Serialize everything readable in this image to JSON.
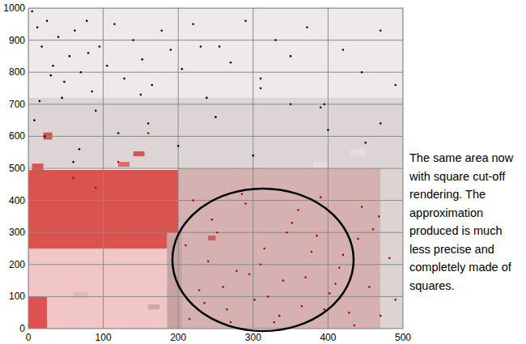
{
  "chart_data": {
    "type": "scatter",
    "xlim": [
      0,
      500
    ],
    "ylim": [
      0,
      1000
    ],
    "xticks": [
      0,
      100,
      200,
      300,
      400,
      500
    ],
    "yticks": [
      0,
      100,
      200,
      300,
      400,
      500,
      600,
      700,
      800,
      900,
      1000
    ],
    "grid": true,
    "annotation": [
      "The same area now",
      "with square cut-off",
      "rendering. The",
      "approximation",
      "produced is much",
      "less precise and",
      "completely made of",
      "squares."
    ],
    "cells": [
      {
        "x": [
          0,
          500
        ],
        "y": [
          0,
          1000
        ],
        "color": "#eeeaea"
      },
      {
        "x": [
          0,
          500
        ],
        "y": [
          500,
          720
        ],
        "color": "#ddd5d5"
      },
      {
        "x": [
          200,
          470
        ],
        "y": [
          0,
          500
        ],
        "color": "#d5b1b1"
      },
      {
        "x": [
          470,
          500
        ],
        "y": [
          0,
          500
        ],
        "color": "#ddd3d3"
      },
      {
        "x": [
          0,
          200
        ],
        "y": [
          250,
          495
        ],
        "color": "#d9534f"
      },
      {
        "x": [
          0,
          185
        ],
        "y": [
          0,
          250
        ],
        "color": "#f0c6c6"
      },
      {
        "x": [
          185,
          205
        ],
        "y": [
          0,
          300
        ],
        "color": "#c9a3a3"
      },
      {
        "x": [
          0,
          25
        ],
        "y": [
          0,
          100
        ],
        "color": "#e05252"
      },
      {
        "x": [
          20,
          32
        ],
        "y": [
          590,
          612
        ],
        "color": "#d9534f"
      },
      {
        "x": [
          5,
          20
        ],
        "y": [
          495,
          515
        ],
        "color": "#d9534f"
      },
      {
        "x": [
          140,
          155
        ],
        "y": [
          538,
          553
        ],
        "color": "#d9534f"
      },
      {
        "x": [
          120,
          135
        ],
        "y": [
          505,
          520
        ],
        "color": "#dd6a66"
      },
      {
        "x": [
          180,
          195
        ],
        "y": [
          470,
          485
        ],
        "color": "#d9534f"
      },
      {
        "x": [
          240,
          250
        ],
        "y": [
          275,
          290
        ],
        "color": "#d35a5a"
      },
      {
        "x": [
          380,
          400
        ],
        "y": [
          500,
          520
        ],
        "color": "#e6dede"
      },
      {
        "x": [
          430,
          450
        ],
        "y": [
          540,
          560
        ],
        "color": "#e6dede"
      },
      {
        "x": [
          60,
          80
        ],
        "y": [
          95,
          115
        ],
        "color": "#e8b8b8"
      },
      {
        "x": [
          160,
          175
        ],
        "y": [
          60,
          75
        ],
        "color": "#c8a4a4"
      }
    ],
    "series": [
      {
        "color": "#000000",
        "marker": "dot",
        "x": [
          5,
          12,
          18,
          25,
          33,
          40,
          48,
          55,
          62,
          70,
          78,
          85,
          95,
          105,
          115,
          128,
          140,
          152,
          165,
          178,
          190,
          205,
          220,
          238,
          255,
          270,
          290,
          310,
          330,
          350,
          372,
          395,
          420,
          445,
          470,
          490,
          8,
          22,
          45,
          68,
          90,
          120,
          160,
          200,
          250,
          300,
          350,
          400,
          450,
          30,
          80,
          150,
          230,
          310,
          390,
          470,
          15,
          60
        ],
        "values": [
          990,
          940,
          880,
          960,
          820,
          910,
          770,
          850,
          930,
          800,
          960,
          740,
          880,
          820,
          950,
          780,
          900,
          840,
          760,
          930,
          870,
          810,
          950,
          720,
          880,
          830,
          960,
          780,
          900,
          850,
          940,
          700,
          870,
          800,
          930,
          760,
          650,
          600,
          720,
          560,
          680,
          610,
          640,
          570,
          660,
          540,
          700,
          620,
          580,
          790,
          860,
          730,
          880,
          750,
          690,
          640,
          710,
          520
        ]
      },
      {
        "color": "#c00000",
        "marker": "dot",
        "x": [
          215,
          228,
          240,
          252,
          265,
          278,
          290,
          302,
          315,
          328,
          340,
          352,
          365,
          378,
          390,
          402,
          415,
          428,
          440,
          455,
          468,
          482,
          220,
          245,
          270,
          295,
          320,
          345,
          370,
          395,
          420,
          445,
          470,
          210,
          235,
          260,
          285,
          310,
          335,
          360,
          385,
          410,
          435,
          460,
          490,
          120,
          60,
          160,
          90
        ],
        "values": [
          30,
          120,
          210,
          300,
          60,
          180,
          390,
          90,
          250,
          20,
          150,
          330,
          70,
          240,
          410,
          110,
          190,
          50,
          280,
          130,
          350,
          220,
          400,
          340,
          20,
          170,
          100,
          300,
          160,
          60,
          230,
          380,
          40,
          260,
          80,
          130,
          420,
          200,
          40,
          370,
          290,
          140,
          10,
          310,
          90,
          520,
          470,
          610,
          440
        ]
      }
    ]
  }
}
